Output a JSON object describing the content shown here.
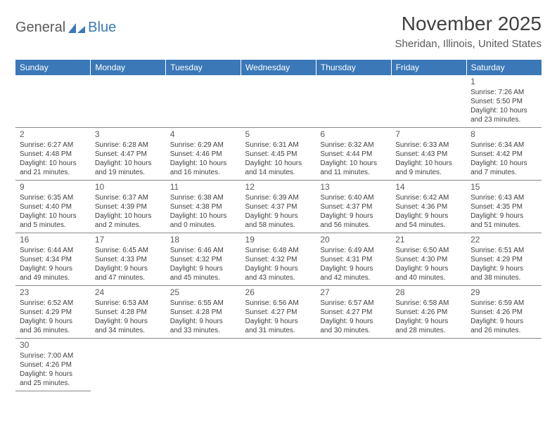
{
  "logo": {
    "general": "General",
    "blue": "Blue"
  },
  "header": {
    "month_title": "November 2025",
    "location": "Sheridan, Illinois, United States"
  },
  "colors": {
    "accent": "#3a78b8",
    "header_text": "#ffffff",
    "body_text": "#404040",
    "subtext": "#5a5a5a",
    "border": "#888888",
    "background": "#ffffff"
  },
  "days": [
    "Sunday",
    "Monday",
    "Tuesday",
    "Wednesday",
    "Thursday",
    "Friday",
    "Saturday"
  ],
  "grid_weeks": 6,
  "first_weekday_index": 6,
  "cells": {
    "1": {
      "sunrise": "Sunrise: 7:26 AM",
      "sunset": "Sunset: 5:50 PM",
      "day1": "Daylight: 10 hours",
      "day2": "and 23 minutes."
    },
    "2": {
      "sunrise": "Sunrise: 6:27 AM",
      "sunset": "Sunset: 4:48 PM",
      "day1": "Daylight: 10 hours",
      "day2": "and 21 minutes."
    },
    "3": {
      "sunrise": "Sunrise: 6:28 AM",
      "sunset": "Sunset: 4:47 PM",
      "day1": "Daylight: 10 hours",
      "day2": "and 19 minutes."
    },
    "4": {
      "sunrise": "Sunrise: 6:29 AM",
      "sunset": "Sunset: 4:46 PM",
      "day1": "Daylight: 10 hours",
      "day2": "and 16 minutes."
    },
    "5": {
      "sunrise": "Sunrise: 6:31 AM",
      "sunset": "Sunset: 4:45 PM",
      "day1": "Daylight: 10 hours",
      "day2": "and 14 minutes."
    },
    "6": {
      "sunrise": "Sunrise: 6:32 AM",
      "sunset": "Sunset: 4:44 PM",
      "day1": "Daylight: 10 hours",
      "day2": "and 11 minutes."
    },
    "7": {
      "sunrise": "Sunrise: 6:33 AM",
      "sunset": "Sunset: 4:43 PM",
      "day1": "Daylight: 10 hours",
      "day2": "and 9 minutes."
    },
    "8": {
      "sunrise": "Sunrise: 6:34 AM",
      "sunset": "Sunset: 4:42 PM",
      "day1": "Daylight: 10 hours",
      "day2": "and 7 minutes."
    },
    "9": {
      "sunrise": "Sunrise: 6:35 AM",
      "sunset": "Sunset: 4:40 PM",
      "day1": "Daylight: 10 hours",
      "day2": "and 5 minutes."
    },
    "10": {
      "sunrise": "Sunrise: 6:37 AM",
      "sunset": "Sunset: 4:39 PM",
      "day1": "Daylight: 10 hours",
      "day2": "and 2 minutes."
    },
    "11": {
      "sunrise": "Sunrise: 6:38 AM",
      "sunset": "Sunset: 4:38 PM",
      "day1": "Daylight: 10 hours",
      "day2": "and 0 minutes."
    },
    "12": {
      "sunrise": "Sunrise: 6:39 AM",
      "sunset": "Sunset: 4:37 PM",
      "day1": "Daylight: 9 hours",
      "day2": "and 58 minutes."
    },
    "13": {
      "sunrise": "Sunrise: 6:40 AM",
      "sunset": "Sunset: 4:37 PM",
      "day1": "Daylight: 9 hours",
      "day2": "and 56 minutes."
    },
    "14": {
      "sunrise": "Sunrise: 6:42 AM",
      "sunset": "Sunset: 4:36 PM",
      "day1": "Daylight: 9 hours",
      "day2": "and 54 minutes."
    },
    "15": {
      "sunrise": "Sunrise: 6:43 AM",
      "sunset": "Sunset: 4:35 PM",
      "day1": "Daylight: 9 hours",
      "day2": "and 51 minutes."
    },
    "16": {
      "sunrise": "Sunrise: 6:44 AM",
      "sunset": "Sunset: 4:34 PM",
      "day1": "Daylight: 9 hours",
      "day2": "and 49 minutes."
    },
    "17": {
      "sunrise": "Sunrise: 6:45 AM",
      "sunset": "Sunset: 4:33 PM",
      "day1": "Daylight: 9 hours",
      "day2": "and 47 minutes."
    },
    "18": {
      "sunrise": "Sunrise: 6:46 AM",
      "sunset": "Sunset: 4:32 PM",
      "day1": "Daylight: 9 hours",
      "day2": "and 45 minutes."
    },
    "19": {
      "sunrise": "Sunrise: 6:48 AM",
      "sunset": "Sunset: 4:32 PM",
      "day1": "Daylight: 9 hours",
      "day2": "and 43 minutes."
    },
    "20": {
      "sunrise": "Sunrise: 6:49 AM",
      "sunset": "Sunset: 4:31 PM",
      "day1": "Daylight: 9 hours",
      "day2": "and 42 minutes."
    },
    "21": {
      "sunrise": "Sunrise: 6:50 AM",
      "sunset": "Sunset: 4:30 PM",
      "day1": "Daylight: 9 hours",
      "day2": "and 40 minutes."
    },
    "22": {
      "sunrise": "Sunrise: 6:51 AM",
      "sunset": "Sunset: 4:29 PM",
      "day1": "Daylight: 9 hours",
      "day2": "and 38 minutes."
    },
    "23": {
      "sunrise": "Sunrise: 6:52 AM",
      "sunset": "Sunset: 4:29 PM",
      "day1": "Daylight: 9 hours",
      "day2": "and 36 minutes."
    },
    "24": {
      "sunrise": "Sunrise: 6:53 AM",
      "sunset": "Sunset: 4:28 PM",
      "day1": "Daylight: 9 hours",
      "day2": "and 34 minutes."
    },
    "25": {
      "sunrise": "Sunrise: 6:55 AM",
      "sunset": "Sunset: 4:28 PM",
      "day1": "Daylight: 9 hours",
      "day2": "and 33 minutes."
    },
    "26": {
      "sunrise": "Sunrise: 6:56 AM",
      "sunset": "Sunset: 4:27 PM",
      "day1": "Daylight: 9 hours",
      "day2": "and 31 minutes."
    },
    "27": {
      "sunrise": "Sunrise: 6:57 AM",
      "sunset": "Sunset: 4:27 PM",
      "day1": "Daylight: 9 hours",
      "day2": "and 30 minutes."
    },
    "28": {
      "sunrise": "Sunrise: 6:58 AM",
      "sunset": "Sunset: 4:26 PM",
      "day1": "Daylight: 9 hours",
      "day2": "and 28 minutes."
    },
    "29": {
      "sunrise": "Sunrise: 6:59 AM",
      "sunset": "Sunset: 4:26 PM",
      "day1": "Daylight: 9 hours",
      "day2": "and 26 minutes."
    },
    "30": {
      "sunrise": "Sunrise: 7:00 AM",
      "sunset": "Sunset: 4:26 PM",
      "day1": "Daylight: 9 hours",
      "day2": "and 25 minutes."
    }
  },
  "num_days": 30
}
